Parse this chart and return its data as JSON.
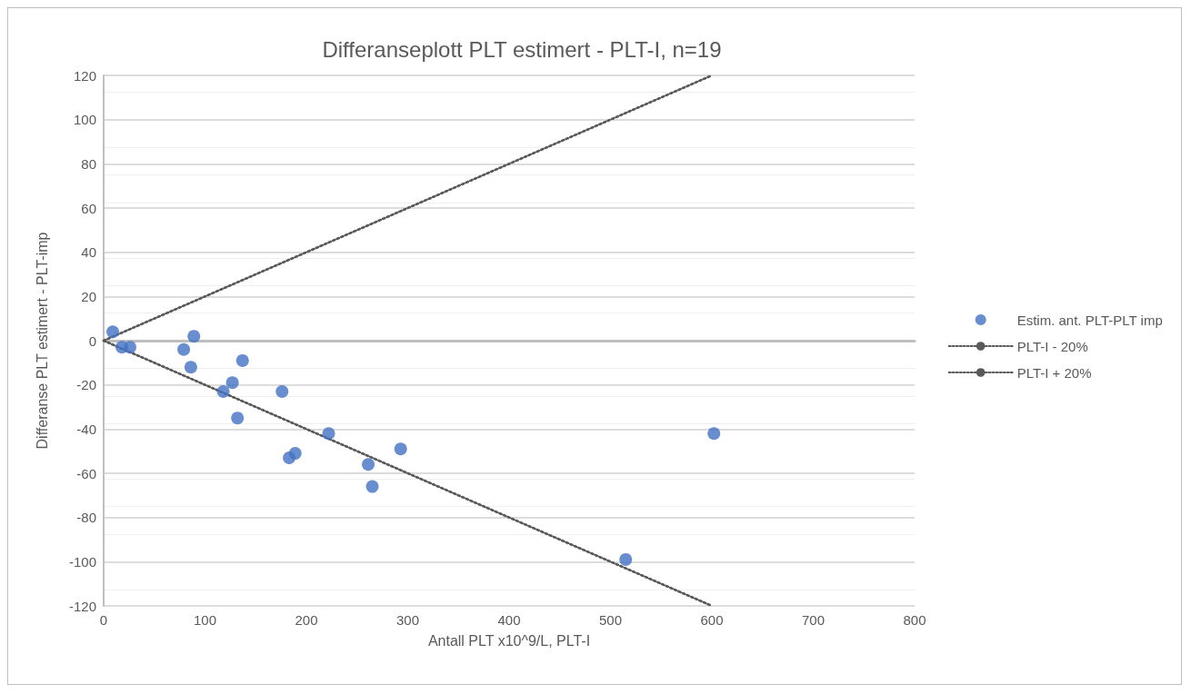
{
  "chart_data": {
    "type": "scatter",
    "title": "Differanseplott PLT estimert - PLT-I, n=19",
    "xlabel": "Antall PLT x10^9/L, PLT-I",
    "ylabel": "Differanse PLT estimert - PLT-imp",
    "xlim": [
      0,
      800
    ],
    "xticks": [
      0,
      100,
      200,
      300,
      400,
      500,
      600,
      700,
      800
    ],
    "ylim": [
      -120,
      120
    ],
    "yticks": [
      -120,
      -100,
      -80,
      -60,
      -40,
      -20,
      0,
      20,
      40,
      60,
      80,
      100,
      120
    ],
    "grid": "y",
    "legend": "right",
    "marker": "circle",
    "series": [
      {
        "name": "Estim. ant. PLT-PLT imp",
        "color": "#4472c4",
        "x": [
          9,
          18,
          26,
          79,
          89,
          86,
          118,
          127,
          137,
          132,
          176,
          183,
          189,
          222,
          261,
          265,
          293,
          515,
          602
        ],
        "values": [
          4,
          -3,
          -3,
          -4,
          2,
          -12,
          -23,
          -19,
          -9,
          -35,
          -23,
          -53,
          -51,
          -42,
          -56,
          -66,
          -49,
          -99,
          -42
        ]
      },
      {
        "name": "PLT-I - 20%",
        "type": "line",
        "color": "#595959",
        "line_style": "dotted",
        "marker": "none",
        "x": [
          0,
          600
        ],
        "values": [
          0,
          -120
        ]
      },
      {
        "name": "PLT-I + 20%",
        "type": "line",
        "color": "#595959",
        "line_style": "dotted",
        "marker": "none",
        "x": [
          0,
          600
        ],
        "values": [
          0,
          120
        ]
      }
    ]
  }
}
